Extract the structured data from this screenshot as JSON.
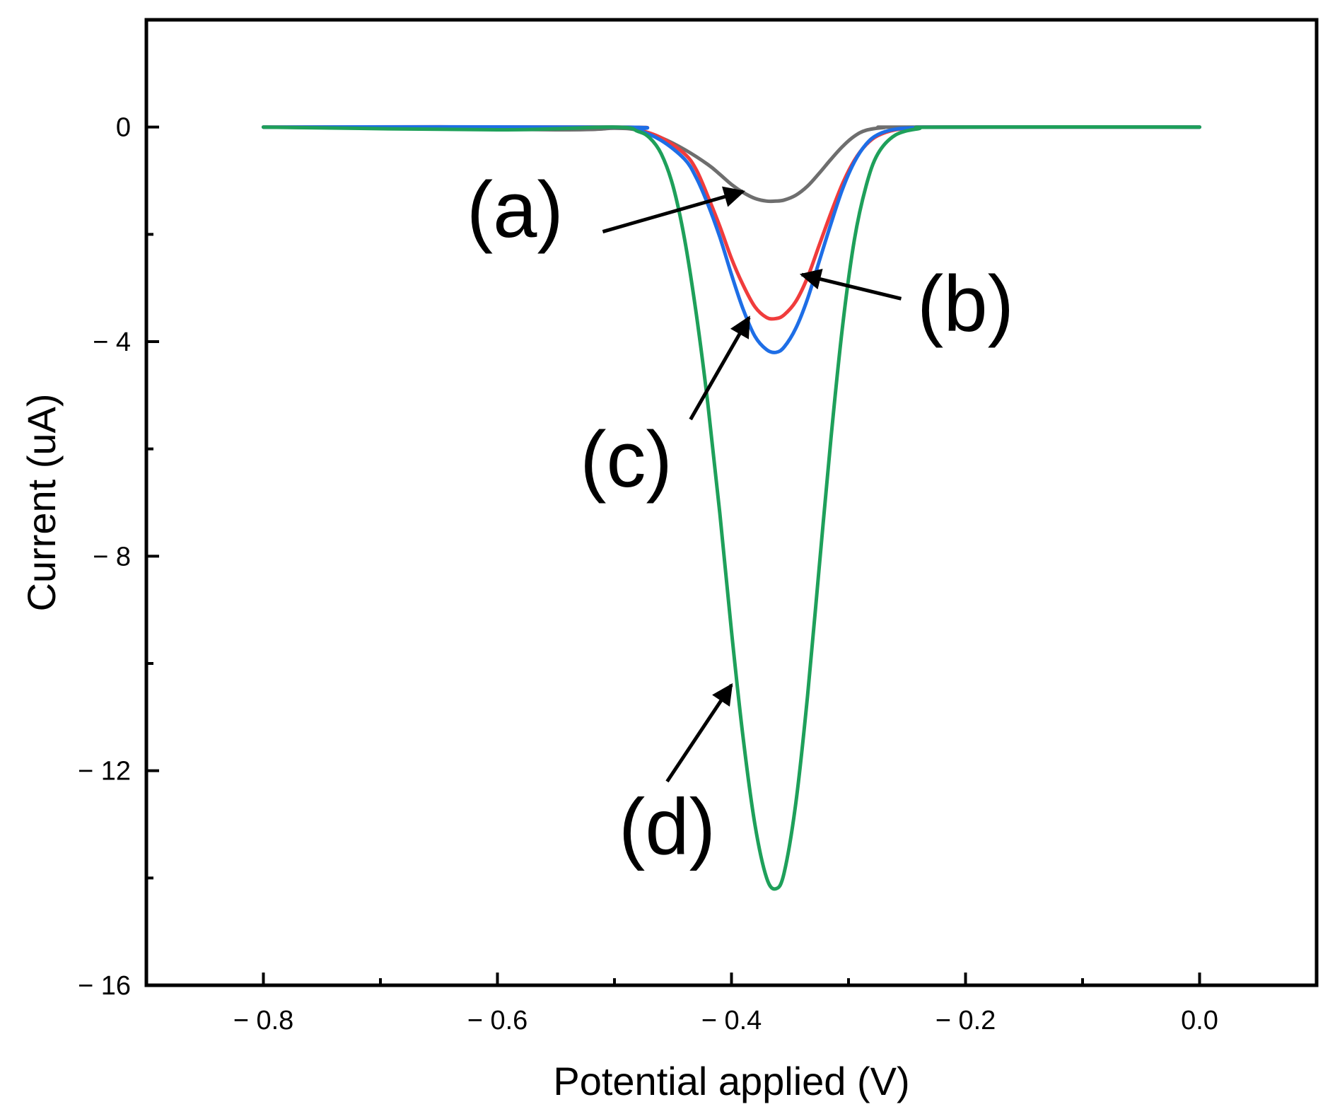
{
  "chart_data": {
    "type": "line",
    "title": "",
    "xlabel": "Potential applied (V)",
    "ylabel": "Current (uA)",
    "xlim": [
      -0.9,
      0.1
    ],
    "ylim": [
      -16,
      2
    ],
    "grid": false,
    "legend": "none",
    "x_ticks": [
      -0.8,
      -0.6,
      -0.4,
      -0.2,
      0.0
    ],
    "x_tick_labels": [
      "− 0.8",
      "− 0.6",
      "− 0.4",
      "− 0.2",
      "0.0"
    ],
    "x_minor_ticks": [
      -0.7,
      -0.5,
      -0.3,
      -0.1
    ],
    "y_ticks": [
      0,
      -4,
      -8,
      -12,
      -16
    ],
    "y_tick_labels": [
      "0",
      "− 4",
      "− 8",
      "− 12",
      "− 16"
    ],
    "y_minor_ticks": [
      -2,
      -6,
      -10,
      -14
    ],
    "series": [
      {
        "name": "(a)",
        "color": "#6e6e6e",
        "x": [
          -0.8,
          -0.55,
          -0.5,
          -0.48,
          -0.46,
          -0.44,
          -0.42,
          -0.41,
          -0.4,
          -0.39,
          -0.38,
          -0.37,
          -0.362,
          -0.355,
          -0.345,
          -0.335,
          -0.325,
          -0.315,
          -0.305,
          -0.295,
          -0.285,
          -0.27,
          -0.25,
          0.0
        ],
        "y": [
          0,
          -0.05,
          -0.02,
          -0.06,
          -0.2,
          -0.42,
          -0.7,
          -0.88,
          -1.07,
          -1.22,
          -1.33,
          -1.38,
          -1.38,
          -1.36,
          -1.27,
          -1.1,
          -0.86,
          -0.6,
          -0.36,
          -0.17,
          -0.06,
          -0.01,
          0,
          0
        ]
      },
      {
        "name": "(b)",
        "color": "#f03c3c",
        "x": [
          -0.8,
          -0.5,
          -0.48,
          -0.46,
          -0.44,
          -0.43,
          -0.42,
          -0.41,
          -0.4,
          -0.39,
          -0.38,
          -0.37,
          -0.362,
          -0.355,
          -0.345,
          -0.335,
          -0.325,
          -0.315,
          -0.305,
          -0.295,
          -0.285,
          -0.275,
          -0.26,
          -0.24,
          -0.22,
          0.0
        ],
        "y": [
          0,
          0,
          -0.05,
          -0.2,
          -0.5,
          -0.8,
          -1.3,
          -1.85,
          -2.45,
          -2.95,
          -3.35,
          -3.55,
          -3.57,
          -3.5,
          -3.25,
          -2.8,
          -2.2,
          -1.6,
          -1.05,
          -0.62,
          -0.33,
          -0.16,
          -0.05,
          -0.01,
          0,
          0
        ]
      },
      {
        "name": "(c)",
        "color": "#1e6ee6",
        "x": [
          -0.8,
          -0.5,
          -0.48,
          -0.46,
          -0.44,
          -0.43,
          -0.42,
          -0.41,
          -0.4,
          -0.39,
          -0.38,
          -0.37,
          -0.362,
          -0.355,
          -0.345,
          -0.335,
          -0.325,
          -0.315,
          -0.305,
          -0.295,
          -0.285,
          -0.275,
          -0.26,
          -0.24,
          -0.22,
          0.0
        ],
        "y": [
          0,
          0,
          -0.06,
          -0.25,
          -0.6,
          -0.95,
          -1.45,
          -2.05,
          -2.75,
          -3.4,
          -3.9,
          -4.15,
          -4.2,
          -4.1,
          -3.75,
          -3.2,
          -2.5,
          -1.8,
          -1.15,
          -0.65,
          -0.32,
          -0.14,
          -0.04,
          -0.01,
          0,
          0
        ]
      },
      {
        "name": "(d)",
        "color": "#1ea05a",
        "x": [
          -0.8,
          -0.6,
          -0.5,
          -0.48,
          -0.47,
          -0.46,
          -0.45,
          -0.44,
          -0.43,
          -0.42,
          -0.41,
          -0.4,
          -0.39,
          -0.38,
          -0.37,
          -0.362,
          -0.355,
          -0.345,
          -0.335,
          -0.325,
          -0.315,
          -0.305,
          -0.295,
          -0.285,
          -0.275,
          -0.26,
          -0.24,
          -0.22,
          0.0
        ],
        "y": [
          0,
          -0.05,
          0,
          -0.08,
          -0.2,
          -0.5,
          -1.1,
          -2.1,
          -3.5,
          -5.2,
          -7.2,
          -9.4,
          -11.4,
          -13.0,
          -14.0,
          -14.2,
          -13.9,
          -12.6,
          -10.6,
          -8.2,
          -5.8,
          -3.7,
          -2.1,
          -1.1,
          -0.5,
          -0.15,
          -0.03,
          0,
          0
        ]
      }
    ],
    "annotations": [
      {
        "text": "(a)",
        "tip": [
          -0.39,
          -1.2
        ],
        "tail": [
          -0.51,
          -1.95
        ],
        "text_at": [
          -0.585,
          -1.55
        ]
      },
      {
        "text": "(b)",
        "tip": [
          -0.34,
          -2.75
        ],
        "tail": [
          -0.255,
          -3.2
        ],
        "text_at": [
          -0.2,
          -3.3
        ]
      },
      {
        "text": "(c)",
        "tip": [
          -0.385,
          -3.55
        ],
        "tail": [
          -0.435,
          -5.45
        ],
        "text_at": [
          -0.49,
          -6.2
        ]
      },
      {
        "text": "(d)",
        "tip": [
          -0.4,
          -10.4
        ],
        "tail": [
          -0.455,
          -12.2
        ],
        "text_at": [
          -0.455,
          -13.05
        ]
      }
    ]
  }
}
